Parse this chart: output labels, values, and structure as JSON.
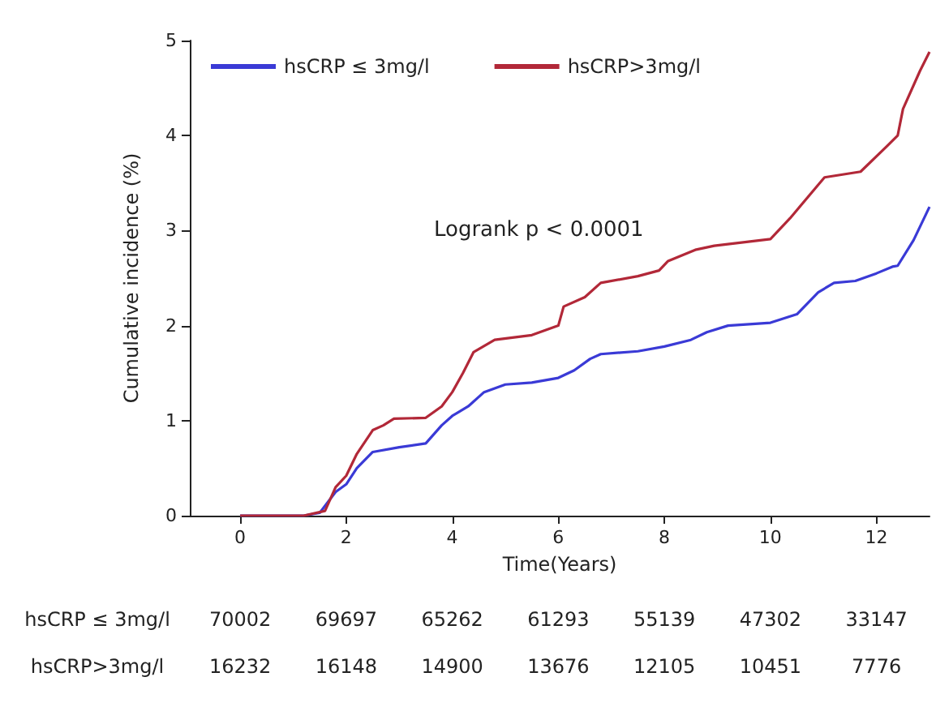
{
  "chart_data": {
    "type": "line",
    "xlabel": "Time(Years)",
    "ylabel": "Cumulative incidence (%)",
    "xlim": [
      -0.95,
      13.0
    ],
    "xticks": [
      0,
      2,
      4,
      6,
      8,
      10,
      12
    ],
    "ylim": [
      0,
      5
    ],
    "yticks": [
      0,
      1,
      2,
      3,
      4,
      5
    ],
    "grid": false,
    "legend": "top left",
    "marker": "none",
    "line_style": "solid",
    "annotations": [
      "Logrank p < 0.0001",
      "hsCRP ≤ 3mg/l",
      "70002",
      "69697",
      "65262",
      "61293",
      "55139",
      "47302",
      "33147",
      "hsCRP>3mg/l",
      "16232",
      "16148",
      "14900",
      "13676",
      "12105",
      "10451",
      "7776"
    ],
    "series": [
      {
        "name": "hsCRP ≤ 3mg/l",
        "color": "#3a3ad6",
        "x": [
          0,
          1.2,
          1.5,
          1.8,
          2.0,
          2.2,
          2.5,
          3.0,
          3.5,
          3.8,
          4.0,
          4.3,
          4.6,
          5.0,
          5.5,
          6.0,
          6.3,
          6.6,
          6.8,
          7.5,
          8.0,
          8.5,
          8.8,
          9.2,
          10.0,
          10.5,
          10.9,
          11.2,
          11.6,
          12.0,
          12.3,
          12.4,
          12.7,
          13.0
        ],
        "values": [
          0,
          0,
          0.03,
          0.25,
          0.33,
          0.5,
          0.67,
          0.72,
          0.76,
          0.95,
          1.05,
          1.15,
          1.3,
          1.38,
          1.4,
          1.45,
          1.53,
          1.65,
          1.7,
          1.73,
          1.78,
          1.85,
          1.93,
          2.0,
          2.03,
          2.12,
          2.35,
          2.45,
          2.47,
          2.55,
          2.62,
          2.63,
          2.9,
          3.25
        ]
      },
      {
        "name": "hsCRP>3mg/l",
        "color": "#b22838",
        "x": [
          0,
          1.2,
          1.6,
          1.8,
          2.0,
          2.2,
          2.5,
          2.7,
          2.9,
          3.5,
          3.8,
          4.0,
          4.2,
          4.4,
          4.8,
          5.5,
          6.0,
          6.1,
          6.5,
          6.8,
          7.5,
          7.9,
          8.07,
          8.6,
          8.94,
          10.0,
          10.37,
          11.02,
          11.7,
          12.2,
          12.4,
          12.5,
          12.82,
          13.0
        ],
        "values": [
          0,
          0,
          0.05,
          0.3,
          0.42,
          0.65,
          0.9,
          0.95,
          1.02,
          1.03,
          1.15,
          1.3,
          1.5,
          1.72,
          1.85,
          1.9,
          2.0,
          2.2,
          2.3,
          2.45,
          2.52,
          2.58,
          2.68,
          2.8,
          2.84,
          2.91,
          3.13,
          3.56,
          3.62,
          3.89,
          4.0,
          4.28,
          4.68,
          4.88
        ]
      }
    ]
  }
}
